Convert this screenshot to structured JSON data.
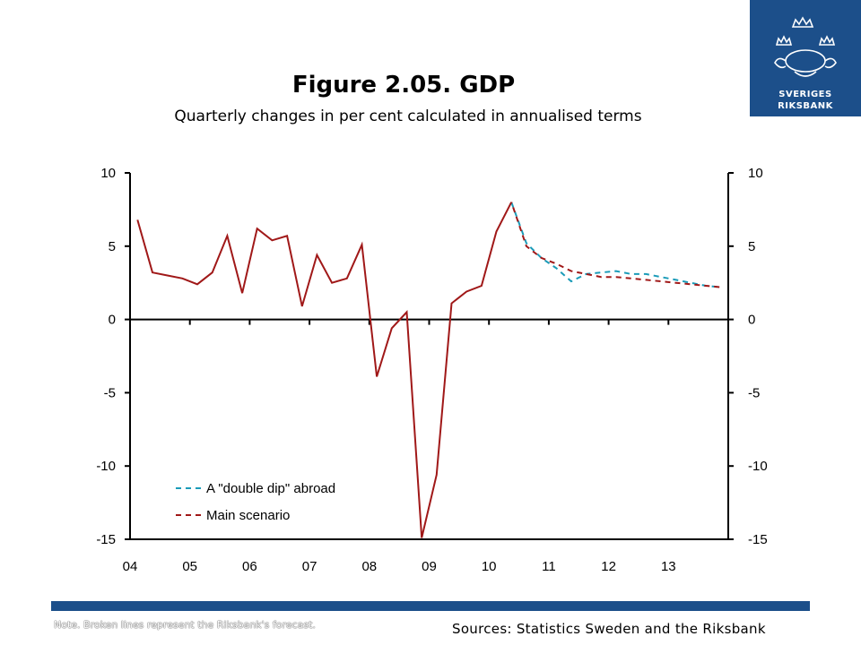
{
  "logo": {
    "line1": "SVERIGES",
    "line2": "RIKSBANK"
  },
  "header": {
    "title": "Figure 2.05. GDP",
    "subtitle": "Quarterly changes in per cent calculated in annualised terms"
  },
  "footer": {
    "note": "Note. Broken lines represent the Riksbank's forecast.",
    "sources": "Sources: Statistics Sweden and the Riksbank"
  },
  "colors": {
    "main": "#a01818",
    "double_dip": "#1a9bb8",
    "brand": "#1c4f8a"
  },
  "chart_data": {
    "type": "line",
    "title": "Figure 2.05. GDP",
    "subtitle": "Quarterly changes in per cent calculated in annualised terms",
    "ylim": [
      -15,
      10
    ],
    "y_ticks": [
      10,
      5,
      0,
      -5,
      -10,
      -15
    ],
    "x_tick_labels": [
      "04",
      "05",
      "06",
      "07",
      "08",
      "09",
      "10",
      "11",
      "12",
      "13"
    ],
    "x_quarters": [
      "2004Q1",
      "2004Q2",
      "2004Q3",
      "2004Q4",
      "2005Q1",
      "2005Q2",
      "2005Q3",
      "2005Q4",
      "2006Q1",
      "2006Q2",
      "2006Q3",
      "2006Q4",
      "2007Q1",
      "2007Q2",
      "2007Q3",
      "2007Q4",
      "2008Q1",
      "2008Q2",
      "2008Q3",
      "2008Q4",
      "2009Q1",
      "2009Q2",
      "2009Q3",
      "2009Q4",
      "2010Q1",
      "2010Q2",
      "2010Q3",
      "2010Q4",
      "2011Q1",
      "2011Q2",
      "2011Q3",
      "2011Q4",
      "2012Q1",
      "2012Q2",
      "2012Q3",
      "2012Q4",
      "2013Q1",
      "2013Q2",
      "2013Q3",
      "2013Q4"
    ],
    "outcome": [
      6.8,
      3.2,
      3.0,
      2.8,
      2.4,
      3.2,
      5.7,
      1.8,
      6.2,
      5.4,
      5.7,
      0.9,
      4.4,
      2.5,
      2.8,
      5.1,
      -3.9,
      -0.6,
      0.5,
      -14.9,
      -10.6,
      1.1,
      1.9,
      2.3,
      6.0,
      8.0
    ],
    "series": [
      {
        "name": "A \"double dip\" abroad",
        "start_index": 25,
        "style": "dashed",
        "values": [
          8.0,
          5.2,
          4.2,
          3.5,
          2.6,
          3.1,
          3.2,
          3.3,
          3.1,
          3.1,
          2.9,
          2.7,
          2.5,
          2.3,
          2.2
        ]
      },
      {
        "name": "Main scenario",
        "start_index": 25,
        "style": "dashed",
        "values": [
          8.0,
          5.0,
          4.2,
          3.8,
          3.3,
          3.1,
          2.9,
          2.9,
          2.8,
          2.7,
          2.6,
          2.5,
          2.4,
          2.3,
          2.2
        ]
      }
    ],
    "legend_position": "bottom-left",
    "grid": false
  }
}
